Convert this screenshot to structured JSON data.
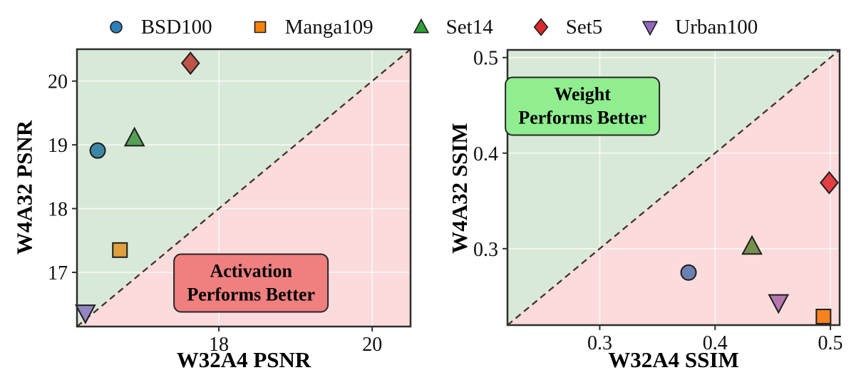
{
  "figure": {
    "background": "#ffffff"
  },
  "legend": {
    "items": [
      {
        "label": "BSD100",
        "marker": "circle",
        "color": "#2d7fb8"
      },
      {
        "label": "Manga109",
        "marker": "square",
        "color": "#f5820b"
      },
      {
        "label": "Set14",
        "marker": "triangle-up",
        "color": "#2f9e38"
      },
      {
        "label": "Set5",
        "marker": "diamond",
        "color": "#d92a2c"
      },
      {
        "label": "Urban100",
        "marker": "triangle-down",
        "color": "#9467bd"
      }
    ]
  },
  "chart_data": [
    {
      "type": "scatter",
      "xlabel": "W32A4 PSNR",
      "ylabel": "W4A32 PSNR",
      "xlim": [
        16.15,
        20.5
      ],
      "ylim": [
        16.15,
        20.5
      ],
      "xtick_values": [
        18,
        20
      ],
      "xtick_labels": [
        "18",
        "20"
      ],
      "ytick_values": [
        17,
        18,
        19,
        20
      ],
      "ytick_labels": [
        "17",
        "18",
        "19",
        "20"
      ],
      "diagonal": "dashed identity line y=x",
      "regions": {
        "above_color": "#d9e9d8",
        "below_color": "#fbdbdb"
      },
      "annotation": {
        "lines": [
          "Activation",
          "Performs Better"
        ],
        "fill": "#f08080",
        "border": "#262626",
        "cx": 18.42,
        "cy": 16.83
      },
      "points": [
        {
          "series": "BSD100",
          "marker": "circle",
          "x": 16.42,
          "y": 18.91,
          "color": "#3e86a6"
        },
        {
          "series": "Manga109",
          "marker": "square",
          "x": 16.71,
          "y": 17.35,
          "color": "#dfa03c"
        },
        {
          "series": "Set14",
          "marker": "triangle-up",
          "x": 16.9,
          "y": 19.1,
          "color": "#55a055"
        },
        {
          "series": "Set5",
          "marker": "diamond",
          "x": 17.63,
          "y": 20.28,
          "color": "#c0544a"
        },
        {
          "series": "Urban100",
          "marker": "triangle-down",
          "x": 16.26,
          "y": 16.37,
          "color": "#9186c0"
        }
      ]
    },
    {
      "type": "scatter",
      "xlabel": "W32A4 SSIM",
      "ylabel": "W4A32 SSIM",
      "xlim": [
        0.22,
        0.508
      ],
      "ylim": [
        0.22,
        0.508
      ],
      "xtick_values": [
        0.3,
        0.4,
        0.5
      ],
      "xtick_labels": [
        "0.3",
        "0.4",
        "0.5"
      ],
      "ytick_values": [
        0.3,
        0.4,
        0.5
      ],
      "ytick_labels": [
        "0.3",
        "0.4",
        "0.5"
      ],
      "diagonal": "dashed identity line y=x",
      "regions": {
        "above_color": "#d9e9d8",
        "below_color": "#fbdbdb"
      },
      "annotation": {
        "lines": [
          "Weight",
          "Performs Better"
        ],
        "fill": "#90ee90",
        "border": "#262626",
        "cx": 0.285,
        "cy": 0.449
      },
      "points": [
        {
          "series": "BSD100",
          "marker": "circle",
          "x": 0.377,
          "y": 0.275,
          "color": "#6b80b2"
        },
        {
          "series": "Manga109",
          "marker": "square",
          "x": 0.494,
          "y": 0.229,
          "color": "#f8821e"
        },
        {
          "series": "Set14",
          "marker": "triangle-up",
          "x": 0.432,
          "y": 0.302,
          "color": "#74904c"
        },
        {
          "series": "Set5",
          "marker": "diamond",
          "x": 0.499,
          "y": 0.369,
          "color": "#e23f42"
        },
        {
          "series": "Urban100",
          "marker": "triangle-down",
          "x": 0.455,
          "y": 0.244,
          "color": "#b477ae"
        }
      ]
    }
  ]
}
